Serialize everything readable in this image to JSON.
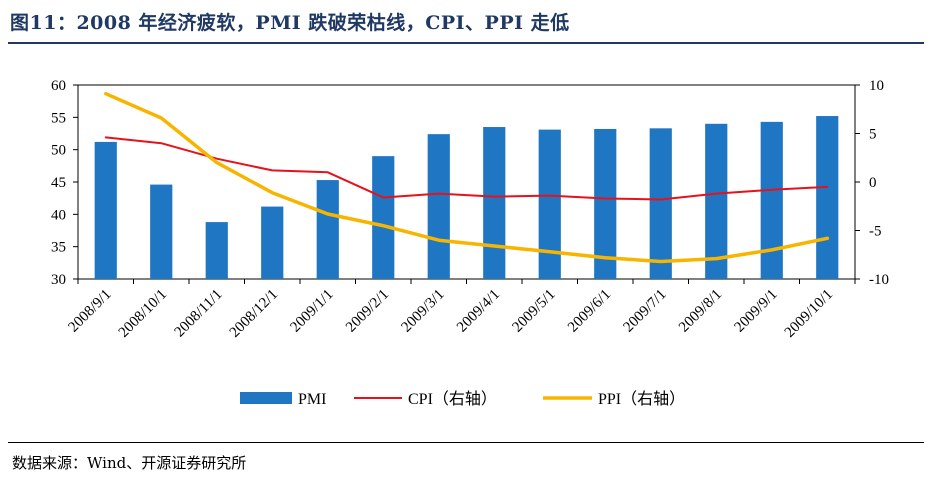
{
  "figure": {
    "title": "图11：2008 年经济疲软，PMI 跌破荣枯线，CPI、PPI 走低",
    "source": "数据来源：Wind、开源证券研究所"
  },
  "colors": {
    "title": "#1f3864",
    "bar": "#1f77c4",
    "cpi": "#e8111a",
    "ppi": "#f7b500"
  },
  "chart_data": {
    "type": "bar",
    "categories": [
      "2008/9/1",
      "2008/10/1",
      "2008/11/1",
      "2008/12/1",
      "2009/1/1",
      "2009/2/1",
      "2009/3/1",
      "2009/4/1",
      "2009/5/1",
      "2009/6/1",
      "2009/7/1",
      "2009/8/1",
      "2009/9/1",
      "2009/10/1"
    ],
    "series": [
      {
        "name": "PMI",
        "type": "bar",
        "axis": "left",
        "values": [
          51.2,
          44.6,
          38.8,
          41.2,
          45.3,
          49.0,
          52.4,
          53.5,
          53.1,
          53.2,
          53.3,
          54.0,
          54.3,
          55.2
        ]
      },
      {
        "name": "CPI（右轴）",
        "type": "line",
        "axis": "right",
        "values": [
          4.6,
          4.0,
          2.4,
          1.2,
          1.0,
          -1.6,
          -1.2,
          -1.5,
          -1.4,
          -1.7,
          -1.8,
          -1.2,
          -0.8,
          -0.5
        ]
      },
      {
        "name": "PPI（右轴）",
        "type": "line",
        "axis": "right",
        "values": [
          9.1,
          6.6,
          2.0,
          -1.1,
          -3.3,
          -4.5,
          -6.0,
          -6.6,
          -7.2,
          -7.8,
          -8.2,
          -7.9,
          -7.0,
          -5.8
        ]
      }
    ],
    "y_left": {
      "min": 30,
      "max": 60,
      "step": 5
    },
    "y_right": {
      "min": -10,
      "max": 10,
      "step": 5
    },
    "legend": [
      "PMI",
      "CPI（右轴）",
      "PPI（右轴）"
    ],
    "legend_position": "bottom",
    "grid": false
  }
}
